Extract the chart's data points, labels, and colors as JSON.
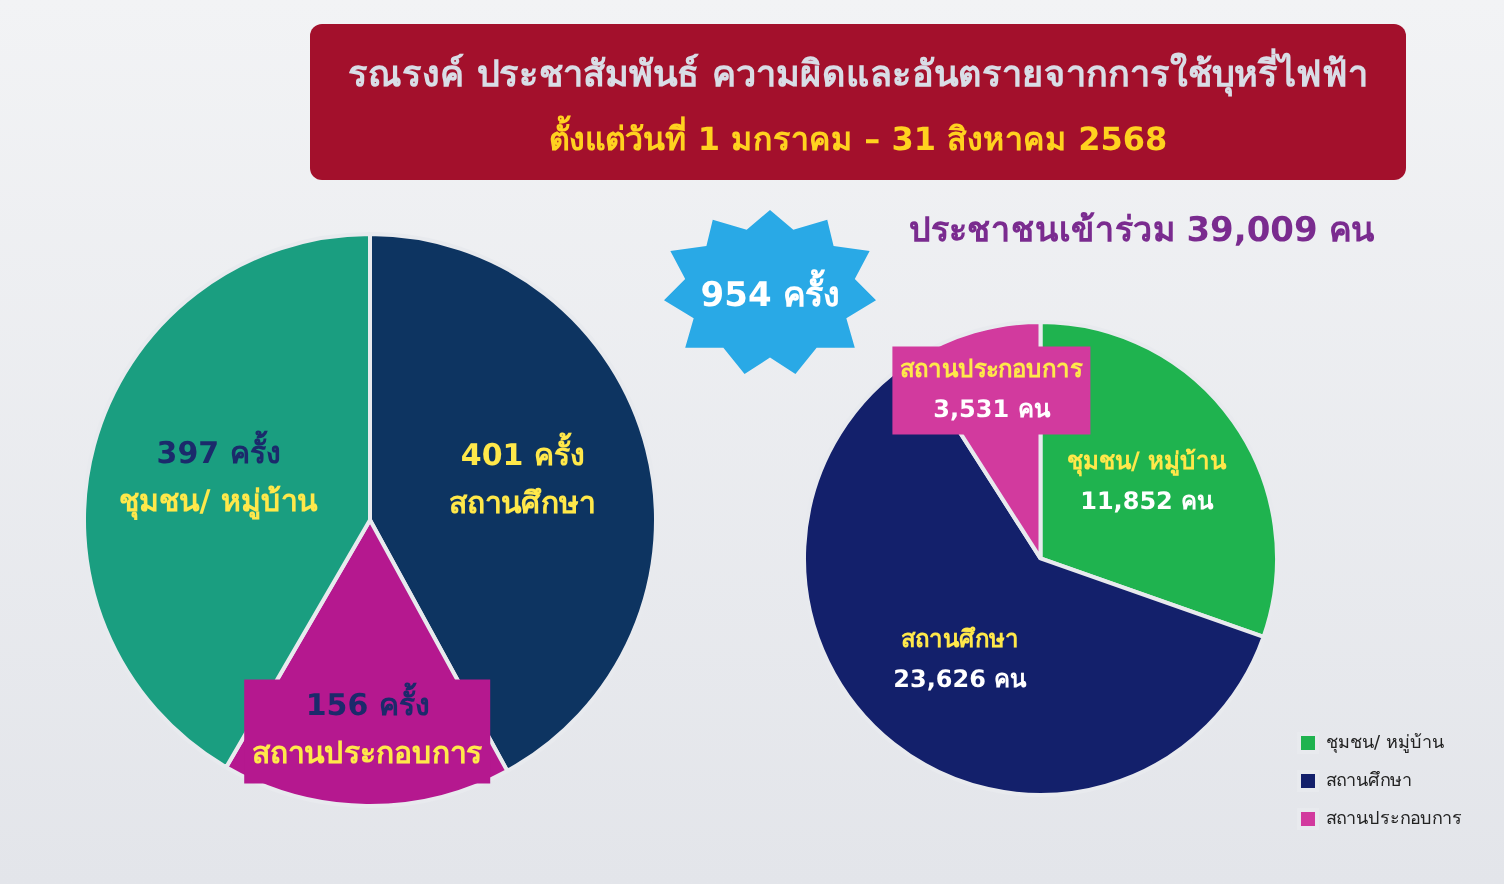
{
  "chart_data": [
    {
      "type": "pie",
      "title": "รณรงค์ ประชาสัมพันธ์ ความผิดและอันตรายจากการใช้บุหรี่ไฟฟ้า",
      "subtitle": "ตั้งแต่วันที่ 1 มกราคม – 31 สิงหาคม 2568",
      "categories": [
        "สถานศึกษา",
        "สถานประกอบการ",
        "ชุมชน/ หมู่บ้าน"
      ],
      "values": [
        401,
        156,
        397
      ],
      "value_labels": [
        "401 ครั้ง",
        "156 ครั้ง",
        "397 ครั้ง"
      ],
      "colors": [
        "#0d3461",
        "#b5188f",
        "#1a9e80"
      ],
      "annotations": [
        "954 ครั้ง"
      ],
      "legend": false
    },
    {
      "type": "pie",
      "title": "ประชาชนเข้าร่วม 39,009 คน",
      "categories": [
        "ชุมชน/ หมู่บ้าน",
        "สถานศึกษา",
        "สถานประกอบการ"
      ],
      "values": [
        11852,
        23626,
        3531
      ],
      "value_labels": [
        "11,852 คน",
        "23,626 คน",
        "3,531 คน"
      ],
      "colors": [
        "#1fb34f",
        "#13206b",
        "#d23a9e"
      ],
      "legend": "bottom right"
    }
  ]
}
